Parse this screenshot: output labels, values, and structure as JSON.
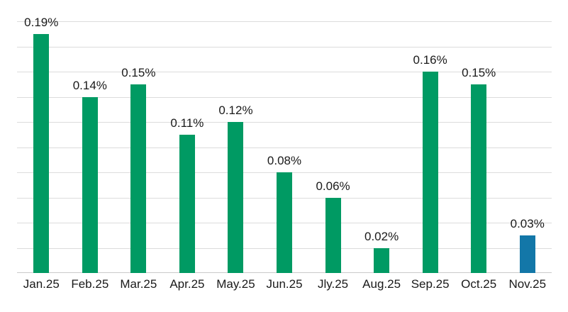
{
  "chart_data": {
    "type": "bar",
    "categories": [
      "Jan.25",
      "Feb.25",
      "Mar.25",
      "Apr.25",
      "May.25",
      "Jun.25",
      "Jly.25",
      "Aug.25",
      "Sep.25",
      "Oct.25",
      "Nov.25"
    ],
    "values": [
      0.19,
      0.14,
      0.15,
      0.11,
      0.12,
      0.08,
      0.06,
      0.02,
      0.16,
      0.15,
      0.03
    ],
    "value_labels": [
      "0.19%",
      "0.14%",
      "0.15%",
      "0.11%",
      "0.12%",
      "0.08%",
      "0.06%",
      "0.02%",
      "0.16%",
      "0.15%",
      "0.03%"
    ],
    "title": "",
    "xlabel": "",
    "ylabel": "",
    "ylim": [
      0,
      0.2
    ],
    "gridline_step": 0.02,
    "grid": true,
    "y_tick_labels_visible": false,
    "legend": "none",
    "highlight_index": 10,
    "colors": {
      "bar_default": "#009a63",
      "bar_highlight": "#1377a8",
      "gridline": "#dcdcdc",
      "baseline": "#c9c9c9",
      "label_text": "#1a1a1a",
      "background": "#ffffff"
    }
  }
}
